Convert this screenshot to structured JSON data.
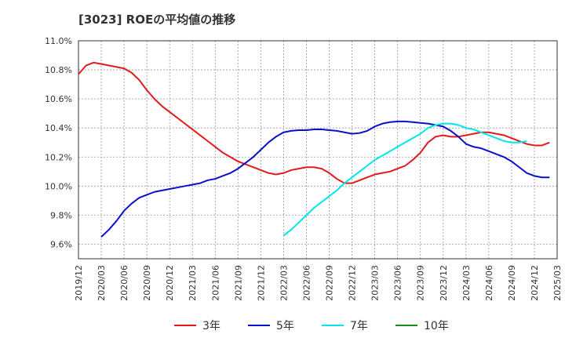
{
  "chart_data": {
    "type": "line",
    "title": "[3023]  ROEの平均値の推移",
    "xlabel": "",
    "ylabel": "",
    "ylim": [
      9.5,
      11.0
    ],
    "y_ticks": [
      "11.0%",
      "10.8%",
      "10.6%",
      "10.4%",
      "10.2%",
      "10.0%",
      "9.8%",
      "9.6%"
    ],
    "x_ticks": [
      "2019/12",
      "2020/03",
      "2020/06",
      "2020/09",
      "2020/12",
      "2021/03",
      "2021/06",
      "2021/09",
      "2021/12",
      "2022/03",
      "2022/06",
      "2022/09",
      "2022/12",
      "2023/03",
      "2023/06",
      "2023/09",
      "2023/12",
      "2024/03",
      "2024/06",
      "2024/09",
      "2024/12",
      "2025/03"
    ],
    "grid": true,
    "legend_position": "bottom",
    "series": [
      {
        "name": "3年",
        "color": "#e31a1c",
        "start": "2019/12",
        "values": [
          10.77,
          10.83,
          10.85,
          10.84,
          10.83,
          10.82,
          10.81,
          10.78,
          10.73,
          10.66,
          10.6,
          10.55,
          10.51,
          10.47,
          10.43,
          10.39,
          10.35,
          10.31,
          10.27,
          10.23,
          10.2,
          10.17,
          10.15,
          10.13,
          10.11,
          10.09,
          10.08,
          10.09,
          10.11,
          10.12,
          10.13,
          10.13,
          10.12,
          10.09,
          10.05,
          10.02,
          10.02,
          10.04,
          10.06,
          10.08,
          10.09,
          10.1,
          10.12,
          10.14,
          10.18,
          10.23,
          10.3,
          10.34,
          10.35,
          10.34,
          10.34,
          10.35,
          10.36,
          10.37,
          10.37,
          10.36,
          10.35,
          10.33,
          10.31,
          10.29,
          10.28,
          10.28,
          10.3
        ]
      },
      {
        "name": "5年",
        "color": "#0a10c8",
        "start": "2020/03",
        "values": [
          9.65,
          9.7,
          9.76,
          9.83,
          9.88,
          9.92,
          9.94,
          9.96,
          9.97,
          9.98,
          9.99,
          10.0,
          10.01,
          10.02,
          10.04,
          10.05,
          10.07,
          10.09,
          10.12,
          10.16,
          10.2,
          10.25,
          10.3,
          10.34,
          10.37,
          10.38,
          10.385,
          10.385,
          10.39,
          10.39,
          10.385,
          10.38,
          10.37,
          10.36,
          10.365,
          10.38,
          10.41,
          10.43,
          10.44,
          10.445,
          10.445,
          10.44,
          10.435,
          10.43,
          10.42,
          10.41,
          10.38,
          10.34,
          10.29,
          10.27,
          10.26,
          10.24,
          10.22,
          10.2,
          10.17,
          10.13,
          10.09,
          10.07,
          10.06,
          10.06
        ]
      },
      {
        "name": "7年",
        "color": "#00e5ee",
        "start": "2022/03",
        "values": [
          9.66,
          9.7,
          9.75,
          9.8,
          9.85,
          9.89,
          9.93,
          9.97,
          10.02,
          10.06,
          10.1,
          10.14,
          10.18,
          10.21,
          10.24,
          10.27,
          10.3,
          10.33,
          10.36,
          10.4,
          10.42,
          10.43,
          10.43,
          10.42,
          10.4,
          10.39,
          10.37,
          10.35,
          10.33,
          10.31,
          10.3,
          10.3,
          10.31
        ]
      },
      {
        "name": "10年",
        "color": "#1a8c1a",
        "start": "2024/12",
        "values": []
      }
    ]
  }
}
